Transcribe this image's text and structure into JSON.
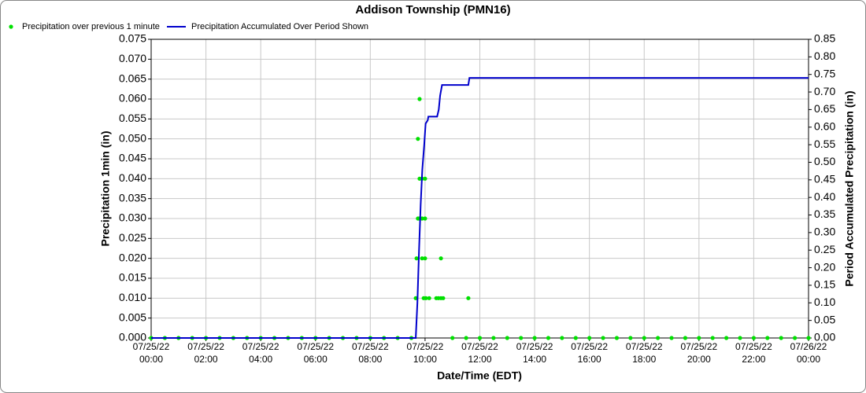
{
  "chart_data": {
    "type": "combo",
    "title": "Addison Township (PMN16)",
    "x_label": "Date/Time (EDT)",
    "y_label": "Precipitation 1min (in)",
    "y2_label": "Period Accumulated Precipitation (in)",
    "xlim": [
      0,
      24
    ],
    "xticks": [
      {
        "value": 0,
        "label": "07/25/22 00:00"
      },
      {
        "value": 2,
        "label": "07/25/22 02:00"
      },
      {
        "value": 4,
        "label": "07/25/22 04:00"
      },
      {
        "value": 6,
        "label": "07/25/22 06:00"
      },
      {
        "value": 8,
        "label": "07/25/22 08:00"
      },
      {
        "value": 10,
        "label": "07/25/22 10:00"
      },
      {
        "value": 12,
        "label": "07/25/22 12:00"
      },
      {
        "value": 14,
        "label": "07/25/22 14:00"
      },
      {
        "value": 16,
        "label": "07/25/22 16:00"
      },
      {
        "value": 18,
        "label": "07/25/22 18:00"
      },
      {
        "value": 20,
        "label": "07/25/22 20:00"
      },
      {
        "value": 22,
        "label": "07/25/22 22:00"
      },
      {
        "value": 24,
        "label": "07/26/22 00:00"
      }
    ],
    "ylim": [
      0,
      0.075
    ],
    "yticks": [
      {
        "value": 0,
        "label": "0.000"
      },
      {
        "value": 0.005,
        "label": "0.005"
      },
      {
        "value": 0.01,
        "label": "0.010"
      },
      {
        "value": 0.015,
        "label": "0.015"
      },
      {
        "value": 0.02,
        "label": "0.020"
      },
      {
        "value": 0.025,
        "label": "0.025"
      },
      {
        "value": 0.03,
        "label": "0.030"
      },
      {
        "value": 0.035,
        "label": "0.035"
      },
      {
        "value": 0.04,
        "label": "0.040"
      },
      {
        "value": 0.045,
        "label": "0.045"
      },
      {
        "value": 0.05,
        "label": "0.050"
      },
      {
        "value": 0.055,
        "label": "0.055"
      },
      {
        "value": 0.06,
        "label": "0.060"
      },
      {
        "value": 0.065,
        "label": "0.065"
      },
      {
        "value": 0.07,
        "label": "0.070"
      },
      {
        "value": 0.075,
        "label": "0.075"
      }
    ],
    "y2lim": [
      0,
      0.85
    ],
    "y2ticks": [
      {
        "value": 0,
        "label": "0.00"
      },
      {
        "value": 0.05,
        "label": "0.05"
      },
      {
        "value": 0.1,
        "label": "0.10"
      },
      {
        "value": 0.15,
        "label": "0.15"
      },
      {
        "value": 0.2,
        "label": "0.20"
      },
      {
        "value": 0.25,
        "label": "0.25"
      },
      {
        "value": 0.3,
        "label": "0.30"
      },
      {
        "value": 0.35,
        "label": "0.35"
      },
      {
        "value": 0.4,
        "label": "0.40"
      },
      {
        "value": 0.45,
        "label": "0.45"
      },
      {
        "value": 0.5,
        "label": "0.50"
      },
      {
        "value": 0.55,
        "label": "0.55"
      },
      {
        "value": 0.6,
        "label": "0.60"
      },
      {
        "value": 0.65,
        "label": "0.65"
      },
      {
        "value": 0.7,
        "label": "0.70"
      },
      {
        "value": 0.75,
        "label": "0.75"
      },
      {
        "value": 0.8,
        "label": "0.80"
      },
      {
        "value": 0.85,
        "label": "0.85"
      }
    ],
    "grid": true,
    "series": [
      {
        "name": "Precipitation over previous 1 minute",
        "type": "scatter",
        "color": "#00e000",
        "x": [
          0,
          0.5,
          1,
          1.5,
          2,
          2.5,
          3,
          3.5,
          4,
          4.5,
          5,
          5.5,
          6,
          6.5,
          7,
          7.5,
          8,
          8.5,
          9,
          9.5,
          9.66,
          9.69,
          9.74,
          9.74,
          9.8,
          9.8,
          9.8,
          9.89,
          9.89,
          9.89,
          9.95,
          10,
          10,
          10,
          10.03,
          10.15,
          10.41,
          10.49,
          10.58,
          10.58,
          10.66,
          11,
          11.5,
          11.58,
          12,
          12.5,
          13,
          13.5,
          14,
          14.5,
          15,
          15.5,
          16,
          16.5,
          17,
          17.5,
          18,
          18.5,
          19,
          19.5,
          20,
          20.5,
          21,
          21.5,
          22,
          22.5,
          23,
          23.5,
          24
        ],
        "values": [
          0,
          0,
          0,
          0,
          0,
          0,
          0,
          0,
          0,
          0,
          0,
          0,
          0,
          0,
          0,
          0,
          0,
          0,
          0,
          0,
          0.01,
          0.02,
          0.05,
          0.03,
          0.06,
          0.04,
          0.03,
          0.04,
          0.03,
          0.02,
          0.01,
          0.04,
          0.03,
          0.02,
          0.01,
          0.01,
          0.01,
          0.01,
          0.02,
          0.01,
          0.01,
          0,
          0,
          0.01,
          0,
          0,
          0,
          0,
          0,
          0,
          0,
          0,
          0,
          0,
          0,
          0,
          0,
          0,
          0,
          0,
          0,
          0,
          0,
          0,
          0,
          0,
          0,
          0,
          0
        ]
      },
      {
        "name": "Precipitation Accumulated Over Period Shown",
        "type": "line",
        "color": "#0000cc",
        "axis": "y2",
        "x": [
          0,
          9.66,
          9.72,
          9.78,
          9.84,
          9.9,
          9.97,
          10.02,
          10.1,
          10.12,
          10.44,
          10.5,
          10.55,
          10.62,
          11.58,
          11.62,
          24
        ],
        "values": [
          0,
          0,
          0.1,
          0.25,
          0.38,
          0.48,
          0.55,
          0.61,
          0.62,
          0.63,
          0.63,
          0.65,
          0.69,
          0.72,
          0.72,
          0.74,
          0.74
        ]
      }
    ],
    "legend": "top-left"
  }
}
